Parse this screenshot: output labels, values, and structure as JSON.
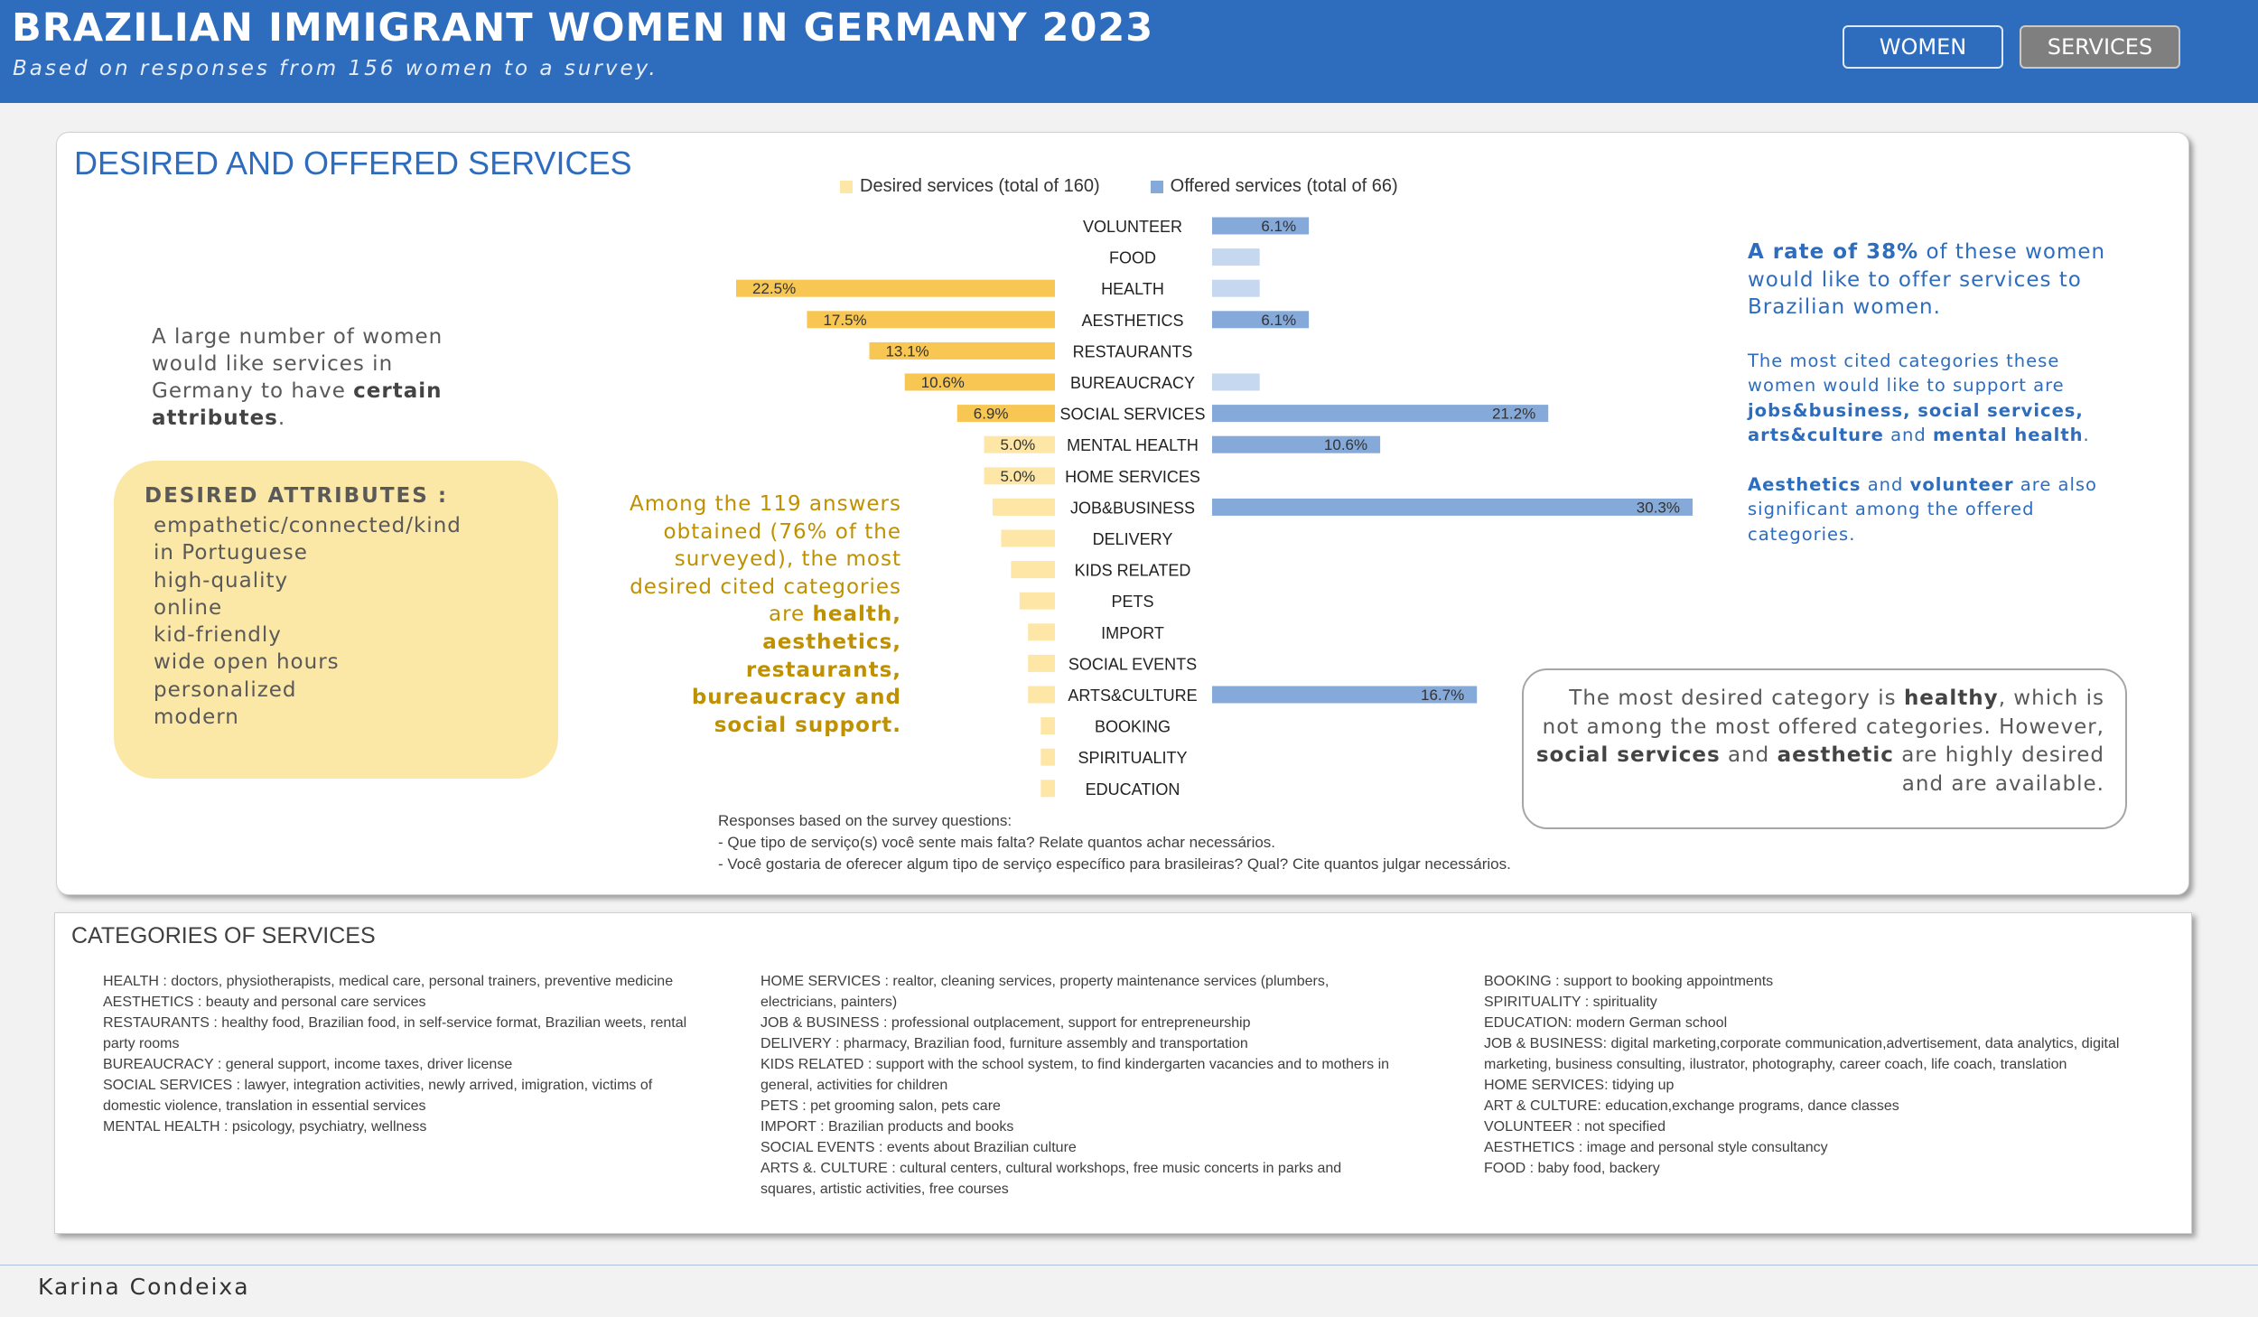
{
  "header": {
    "title": "BRAZILIAN IMMIGRANT WOMEN IN GERMANY 2023",
    "subtitle": "Based on responses from 156 women to a survey.",
    "nav": {
      "women": "WOMEN",
      "services": "SERVICES"
    }
  },
  "colors": {
    "header_bg": "#2e6dbe",
    "desired_strong": "#f7c653",
    "desired_light": "#fde6a6",
    "offered_strong": "#85a9d9",
    "offered_light": "#c6d8ef"
  },
  "services": {
    "title": "DESIRED AND OFFERED SERVICES",
    "intro": {
      "part1": "A large number of women would like services in Germany to have",
      "bold": "certain attributes",
      "part2": "."
    },
    "attributes_title": "DESIRED ATTRIBUTES :",
    "attributes": [
      "empathetic/connected/kind",
      "in Portuguese",
      "high-quality",
      "online",
      "kid-friendly",
      "wide open hours",
      "personalized",
      "modern"
    ],
    "desired_note": {
      "part1": "Among the 119 answers obtained (76% of the surveyed), the most desired cited categories are",
      "bold": "health, aesthetics, restaurants, bureaucracy and social support."
    },
    "offered_note": {
      "p1_bold": "A rate of 38%",
      "p1_rest": " of these women would like to offer services to Brazilian women.",
      "p2_text": "The most cited categories these women would like to support are",
      "p2_bold1": "jobs&business, social services, arts&culture",
      "p2_and": "and",
      "p2_bold2": "mental health",
      "p2_end": ".",
      "p3_bold1": "Aesthetics",
      "p3_and": "and",
      "p3_bold2": "volunteer",
      "p3_rest": "are also significant among the offered categories."
    },
    "callout": {
      "t1": "The most desired category is",
      "b1": "healthy",
      "t2": ", which is not among the most offered categories. However,",
      "b2": "social services",
      "t3": "and",
      "b3": "aesthetic",
      "t4": "are highly desired and are available."
    },
    "survey_notes": [
      "Responses based on the survey questions:",
      "- Que tipo de serviço(s) você sente mais falta? Relate quantos achar necessários.",
      "- Você gostaria de oferecer algum tipo de serviço específico para brasileiras? Qual? Cite quantos julgar necessários."
    ]
  },
  "chart_data": {
    "type": "bar",
    "orientation": "horizontal-butterfly",
    "categories": [
      "VOLUNTEER",
      "FOOD",
      "HEALTH",
      "AESTHETICS",
      "RESTAURANTS",
      "BUREAUCRACY",
      "SOCIAL SERVICES",
      "MENTAL HEALTH",
      "HOME SERVICES",
      "JOB&BUSINESS",
      "DELIVERY",
      "KIDS RELATED",
      "PETS",
      "IMPORT",
      "SOCIAL EVENTS",
      "ARTS&CULTURE",
      "BOOKING",
      "SPIRITUALITY",
      "EDUCATION"
    ],
    "series": [
      {
        "name": "Desired services (total of 160)",
        "values": [
          0,
          0,
          22.5,
          17.5,
          13.1,
          10.6,
          6.9,
          5.0,
          5.0,
          4.4,
          3.8,
          3.1,
          2.5,
          1.9,
          1.9,
          1.9,
          1.0,
          1.0,
          1.0
        ],
        "labels": [
          "",
          "",
          "22.5%",
          "17.5%",
          "13.1%",
          "10.6%",
          "6.9%",
          "5.0%",
          "5.0%",
          "",
          "",
          "",
          "",
          "",
          "",
          "",
          "",
          "",
          ""
        ]
      },
      {
        "name": "Offered services (total of 66)",
        "values": [
          6.1,
          3.0,
          3.0,
          6.1,
          0,
          3.0,
          21.2,
          10.6,
          0,
          30.3,
          0,
          0,
          0,
          0,
          0,
          16.7,
          0,
          0,
          0
        ],
        "labels": [
          "6.1%",
          "",
          "",
          "6.1%",
          "",
          "",
          "21.2%",
          "10.6%",
          "",
          "30.3%",
          "",
          "",
          "",
          "",
          "",
          "16.7%",
          "",
          "",
          ""
        ]
      }
    ],
    "unit": "%"
  },
  "categories_section": {
    "title": "CATEGORIES OF SERVICES",
    "col1": [
      "HEALTH : doctors, physiotherapists, medical care, personal trainers, preventive medicine",
      "AESTHETICS : beauty and personal care services",
      "RESTAURANTS : healthy food, Brazilian food, in self-service format, Brazilian weets, rental party rooms",
      "BUREAUCRACY : general support, income taxes, driver license",
      "SOCIAL  SERVICES : lawyer, integration activities,  newly arrived, imigration, victims of domestic violence, translation in essential services",
      "MENTAL  HEALTH : psicology, psychiatry, wellness"
    ],
    "col2": [
      "HOME SERVICES : realtor, cleaning services, property maintenance services (plumbers, electricians, painters)",
      "JOB & BUSINESS : professional outplacement, support for entrepreneurship",
      "DELIVERY : pharmacy, Brazilian food, furniture assembly and transportation",
      "KIDS RELATED  : support with the school system, to find kindergarten vacancies and  to mothers in general, activities for children",
      "PETS : pet grooming salon, pets care",
      "IMPORT : Brazilian products and books",
      "SOCIAL EVENTS : events about Brazilian culture",
      "ARTS &. CULTURE : cultural centers, cultural workshops, free music  concerts in parks and squares, artistic activities, free courses"
    ],
    "col3": [
      "BOOKING : support to booking appointments",
      "SPIRITUALITY : spirituality",
      "EDUCATION: modern German school",
      " JOB & BUSINESS: digital marketing,corporate communication,advertisement, data analytics, digital marketing, business consulting, ilustrator, photography, career coach, life coach, translation",
      "HOME SERVICES: tidying up",
      "ART & CULTURE: education,exchange programs, dance classes",
      "VOLUNTEER : not specified",
      "AESTHETICS : image and personal style consultancy",
      "FOOD : baby food, backery"
    ]
  },
  "footer": {
    "author": "Karina Condeixa"
  }
}
